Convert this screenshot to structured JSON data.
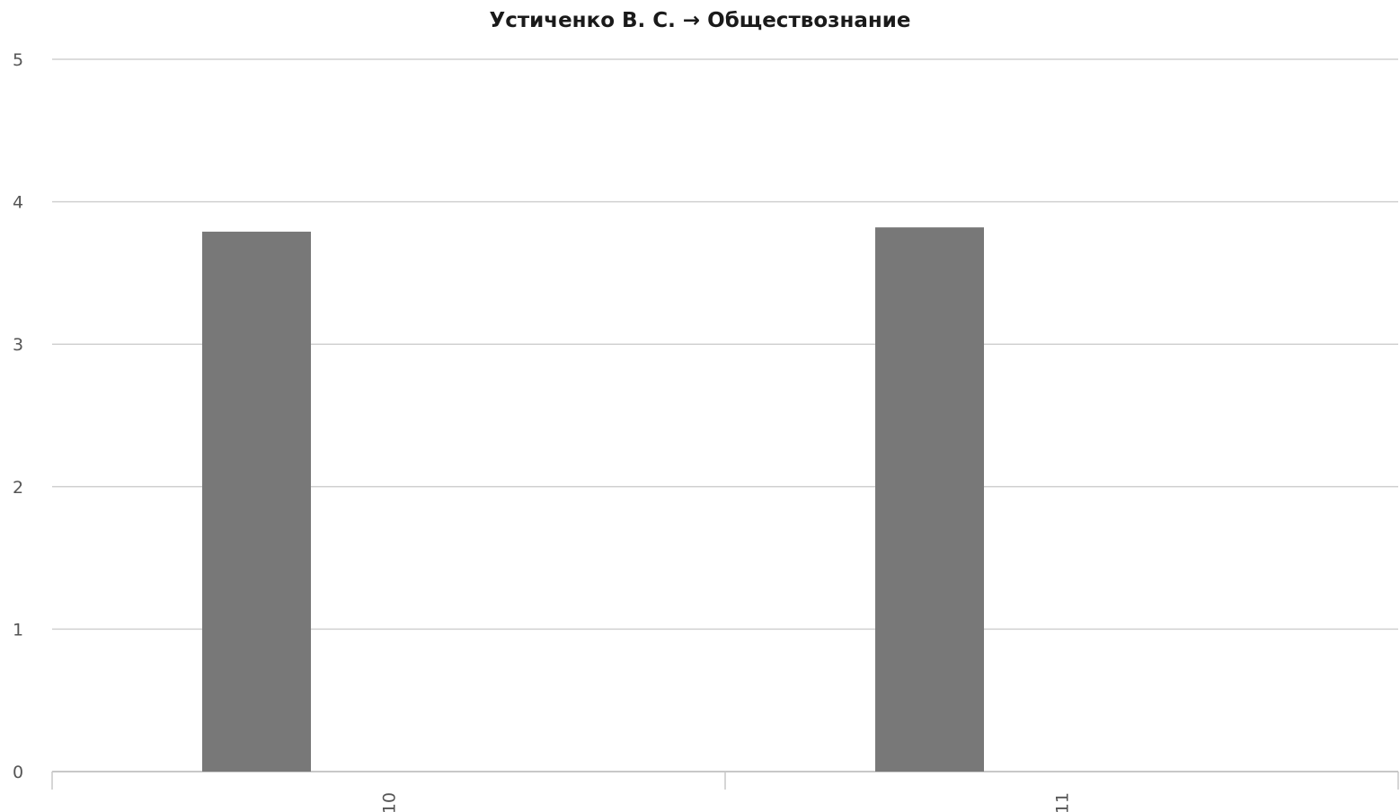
{
  "chart_data": {
    "type": "bar",
    "title": "Устиченко В. С. → Обществознание",
    "categories": [
      "10",
      "11"
    ],
    "series": [
      {
        "values": [
          3.79,
          3.82
        ]
      }
    ],
    "ylim": [
      0,
      5
    ],
    "yticks": [
      "0",
      "1",
      "2",
      "3",
      "4",
      "5"
    ],
    "xlabel": "",
    "ylabel": "",
    "grid": true,
    "legend": "none",
    "x_tick_rotation": "vertical",
    "colors": {
      "bar": "#787878",
      "grid": "#d0d0d0",
      "axis": "#c8c8c8",
      "tick_text": "#555555"
    }
  }
}
